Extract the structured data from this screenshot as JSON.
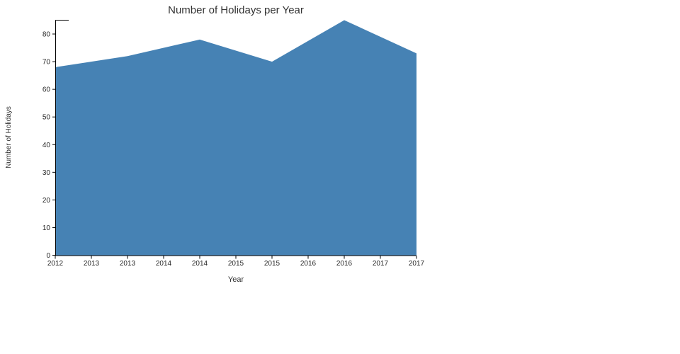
{
  "chart_data": {
    "type": "area",
    "title": "Number of Holidays per Year",
    "xlabel": "Year",
    "ylabel": "Number of Holidays",
    "x": [
      2012,
      2013,
      2014,
      2015,
      2016,
      2017
    ],
    "values": [
      68,
      72,
      78,
      70,
      85,
      73
    ],
    "series_name": "Number of Holidays",
    "xlim": [
      2012,
      2017
    ],
    "ylim": [
      0,
      85
    ],
    "y_ticks": [
      0,
      10,
      20,
      30,
      40,
      50,
      60,
      70,
      80
    ],
    "x_tick_positions": [
      2012,
      2012.5,
      2013,
      2013.5,
      2014,
      2014.5,
      2015,
      2015.5,
      2016,
      2016.5,
      2017
    ],
    "x_tick_labels": [
      "2012",
      "2013",
      "2013",
      "2014",
      "2014",
      "2015",
      "2015",
      "2016",
      "2016",
      "2017",
      "2017"
    ],
    "grid": false,
    "legend": false,
    "fill_color": "#4682b4",
    "axis_color": "#000000",
    "text_color": "#333333",
    "background_color": "#ffffff"
  }
}
